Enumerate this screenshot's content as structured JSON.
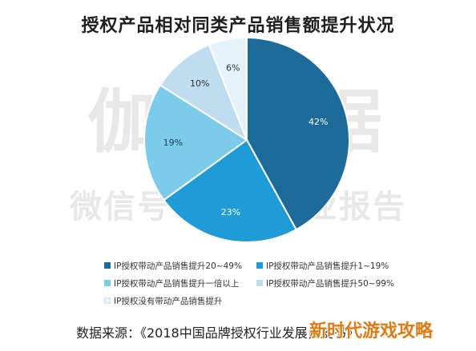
{
  "title": "授权产品相对同类产品销售额提升状况",
  "watermark": {
    "line1": "伽马数据",
    "line2": "微信号：游戏产业报告"
  },
  "chart_data": {
    "type": "pie",
    "title": "授权产品相对同类产品销售额提升状况",
    "slices": [
      {
        "name": "IP授权带动产品销售提升20~49%",
        "value": 42,
        "label": "42%",
        "color": "#1d6b9a"
      },
      {
        "name": "IP授权带动产品销售提升1~19%",
        "value": 23,
        "label": "23%",
        "color": "#1f9bd7"
      },
      {
        "name": "IP授权带动产品销售提升一倍以上",
        "value": 19,
        "label": "19%",
        "color": "#7ccbea"
      },
      {
        "name": "IP授权带动产品销售提升50~99%",
        "value": 10,
        "label": "10%",
        "color": "#c0dcef"
      },
      {
        "name": "IP授权没有带动产品销售提升",
        "value": 6,
        "label": "6%",
        "color": "#e6f2fa"
      }
    ],
    "start": "12 o'clock",
    "direction": "clockwise",
    "legend_position": "bottom"
  },
  "source": "数据来源：《2018中国品牌授权行业发展白皮书》",
  "overlay_text": "新时代游戏攻略"
}
